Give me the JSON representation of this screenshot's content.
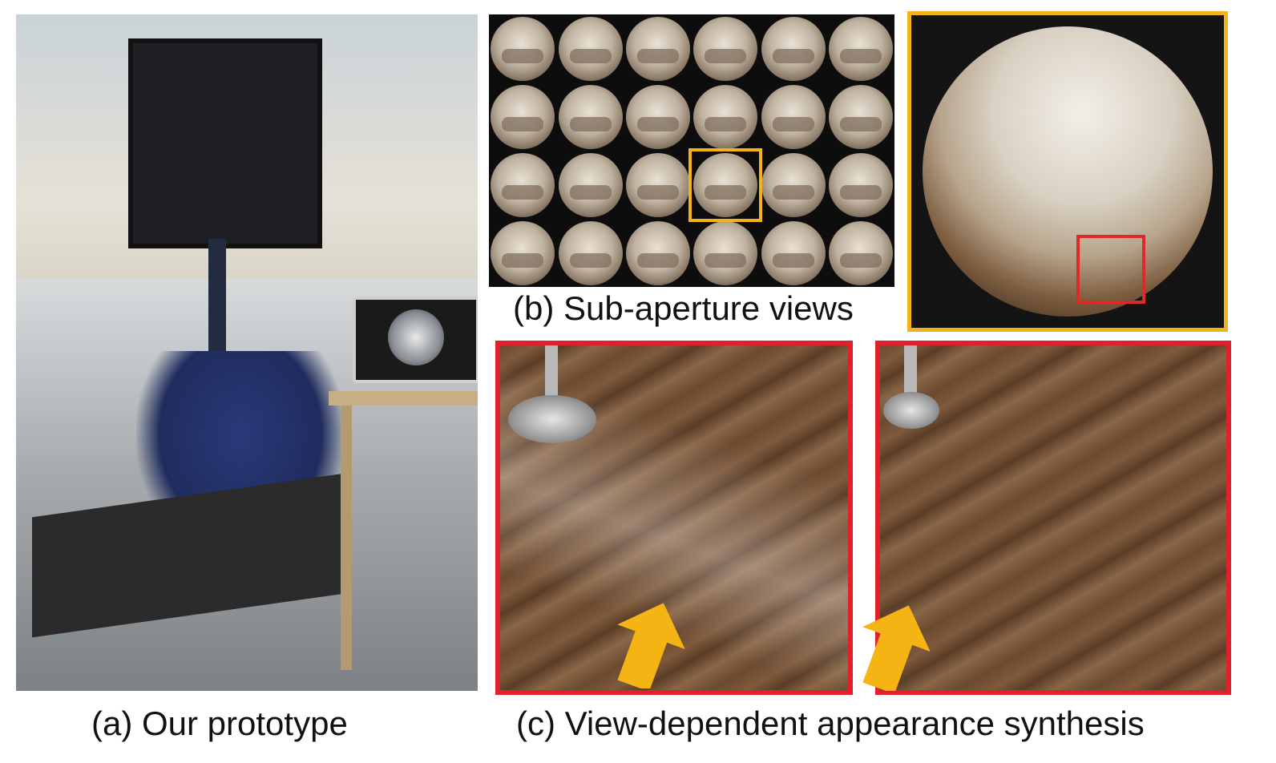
{
  "captions": {
    "a": "(a) Our prototype",
    "b": "(b) Sub-aperture views",
    "c": "(c) View-dependent appearance synthesis"
  },
  "grid": {
    "rows": 4,
    "cols": 6,
    "highlight_row": 3,
    "highlight_col": 4
  },
  "colors": {
    "highlight": "#f2b21c",
    "crop_border": "#e0202a",
    "arrow": "#f5b414"
  }
}
